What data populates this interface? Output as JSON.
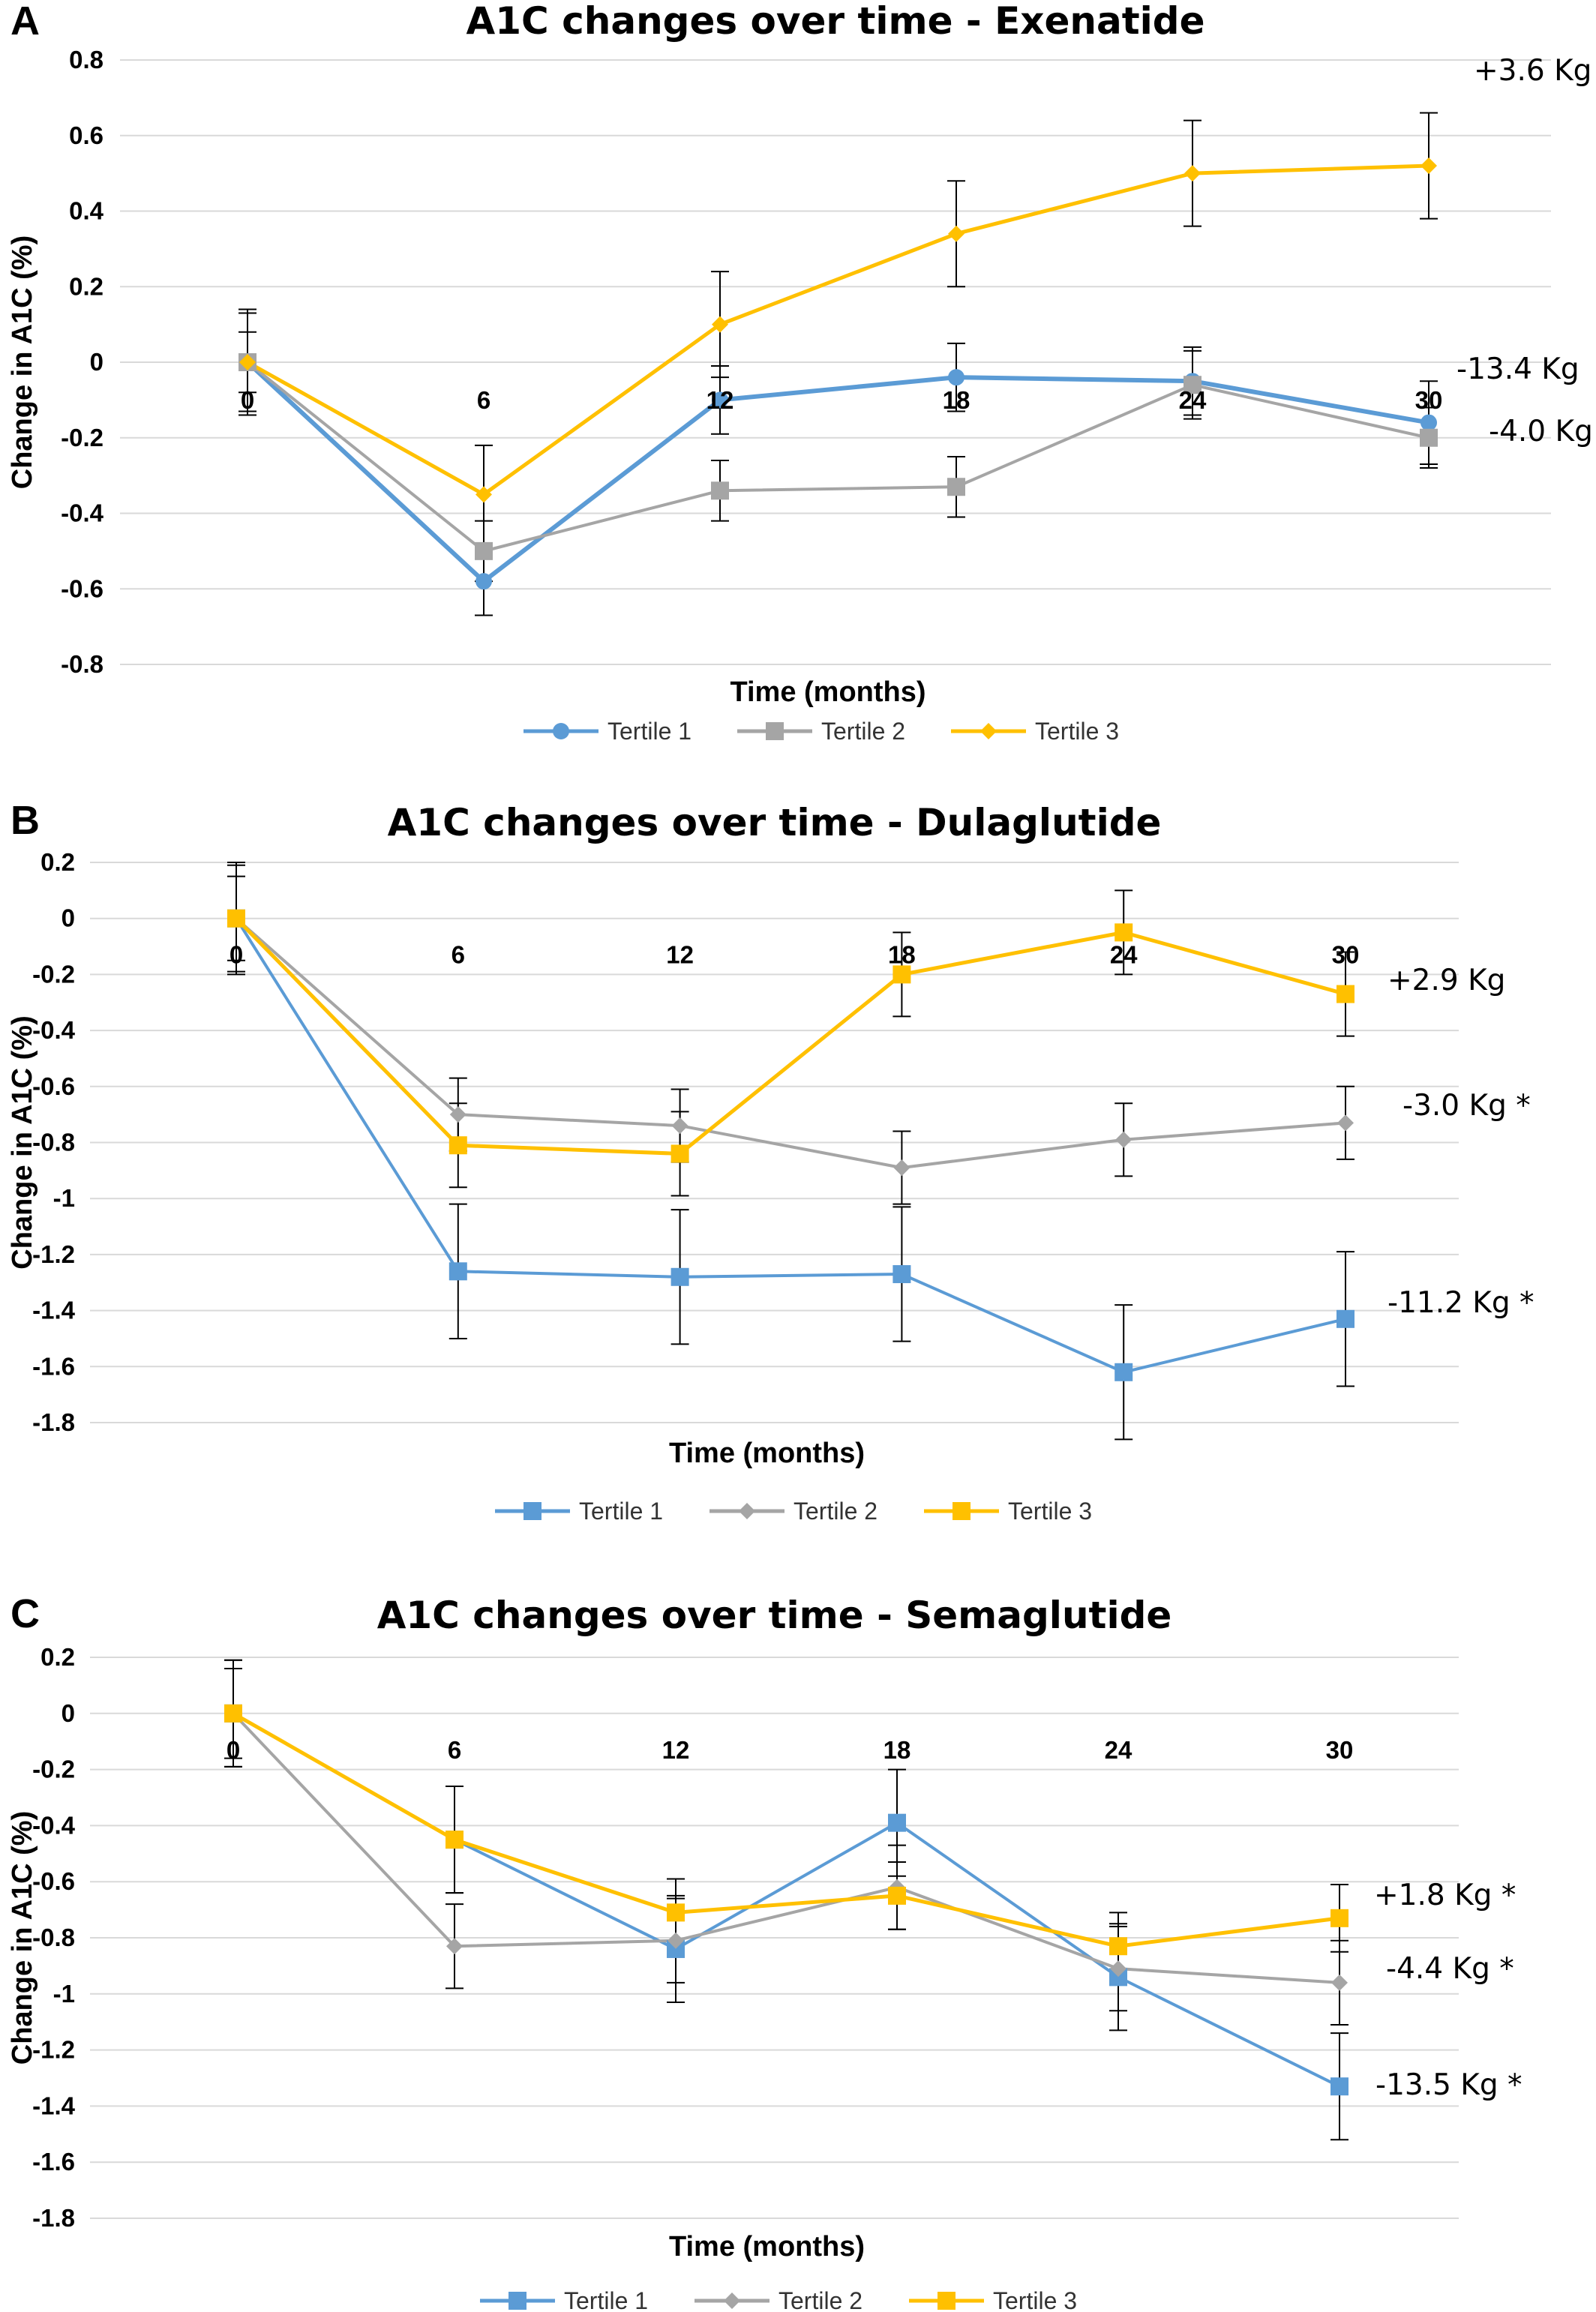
{
  "colors": {
    "tertile1": "#5B9BD5",
    "tertile2": "#A5A5A5",
    "tertile3": "#FFC000",
    "grid": "#D9D9D9"
  },
  "chart_data": [
    {
      "panel": "A",
      "type": "line",
      "title": "A1C changes over time - Exenatide",
      "xlabel": "Time (months)",
      "ylabel": "Change in A1C (%)",
      "x": [
        0,
        6,
        12,
        18,
        24,
        30
      ],
      "ylim": [
        -0.8,
        0.8
      ],
      "yticks": [
        "0.8",
        "0.6",
        "0.4",
        "0.2",
        "0",
        "-0.2",
        "-0.4",
        "-0.6",
        "-0.8"
      ],
      "grid": true,
      "legend": "bottom",
      "series": [
        {
          "name": "Tertile 1",
          "values": [
            0,
            -0.58,
            -0.1,
            -0.04,
            -0.05,
            -0.16
          ],
          "error": [
            0.13,
            0.09,
            0.09,
            0.09,
            0.09,
            0.11
          ],
          "marker": "circle",
          "width": 6
        },
        {
          "name": "Tertile 2",
          "values": [
            0,
            -0.5,
            -0.34,
            -0.33,
            -0.06,
            -0.2
          ],
          "error": [
            0.08,
            0.08,
            0.08,
            0.08,
            0.09,
            0.08
          ],
          "marker": "square",
          "width": 4
        },
        {
          "name": "Tertile 3",
          "values": [
            0,
            -0.35,
            0.1,
            0.34,
            0.5,
            0.52
          ],
          "error": [
            0.14,
            0.13,
            0.14,
            0.14,
            0.14,
            0.14
          ],
          "marker": "diamond",
          "width": 5
        }
      ],
      "annotations": [
        {
          "text": "+3.6 Kg",
          "series": "Tertile 3"
        },
        {
          "text": "-13.4 Kg",
          "series": "Tertile 1"
        },
        {
          "text": "-4.0 Kg",
          "series": "Tertile 2"
        }
      ]
    },
    {
      "panel": "B",
      "type": "line",
      "title": "A1C changes over time - Dulaglutide",
      "xlabel": "Time (months)",
      "ylabel": "Change in A1C (%)",
      "x": [
        0,
        6,
        12,
        18,
        24,
        30
      ],
      "ylim": [
        -1.8,
        0.2
      ],
      "yticks": [
        "0.2",
        "0",
        "-0.2",
        "-0.4",
        "-0.6",
        "-0.8",
        "-1",
        "-1.2",
        "-1.4",
        "-1.6",
        "-1.8"
      ],
      "grid": true,
      "legend": "bottom",
      "series": [
        {
          "name": "Tertile 1",
          "values": [
            0,
            -1.26,
            -1.28,
            -1.27,
            -1.62,
            -1.43
          ],
          "error": [
            0.2,
            0.24,
            0.24,
            0.24,
            0.24,
            0.24
          ],
          "marker": "square",
          "width": 4
        },
        {
          "name": "Tertile 2",
          "values": [
            0,
            -0.7,
            -0.74,
            -0.89,
            -0.79,
            -0.73
          ],
          "error": [
            0.19,
            0.13,
            0.13,
            0.13,
            0.13,
            0.13
          ],
          "marker": "diamond",
          "width": 4
        },
        {
          "name": "Tertile 3",
          "values": [
            0,
            -0.81,
            -0.84,
            -0.2,
            -0.05,
            -0.27
          ],
          "error": [
            0.15,
            0.15,
            0.15,
            0.15,
            0.15,
            0.15
          ],
          "marker": "square",
          "width": 5
        }
      ],
      "annotations": [
        {
          "text": "+2.9 Kg",
          "series": "Tertile 3"
        },
        {
          "text": "-3.0 Kg *",
          "series": "Tertile 2"
        },
        {
          "text": "-11.2 Kg *",
          "series": "Tertile 1"
        }
      ]
    },
    {
      "panel": "C",
      "type": "line",
      "title": "A1C changes over time - Semaglutide",
      "xlabel": "Time (months)",
      "ylabel": "Change in A1C (%)",
      "x": [
        0,
        6,
        12,
        18,
        24,
        30
      ],
      "ylim": [
        -1.8,
        0.2
      ],
      "yticks": [
        "0.2",
        "0",
        "-0.2",
        "-0.4",
        "-0.6",
        "-0.8",
        "-1",
        "-1.2",
        "-1.4",
        "-1.6",
        "-1.8"
      ],
      "grid": true,
      "legend": "bottom",
      "series": [
        {
          "name": "Tertile 1",
          "values": [
            0,
            -0.45,
            -0.84,
            -0.39,
            -0.94,
            -1.33
          ],
          "error": [
            0.19,
            0.19,
            0.19,
            0.19,
            0.19,
            0.19
          ],
          "marker": "square",
          "width": 4
        },
        {
          "name": "Tertile 2",
          "values": [
            0,
            -0.83,
            -0.81,
            -0.62,
            -0.91,
            -0.96
          ],
          "error": [
            0.16,
            0.15,
            0.15,
            0.15,
            0.15,
            0.15
          ],
          "marker": "diamond",
          "width": 4
        },
        {
          "name": "Tertile 3",
          "values": [
            0,
            -0.45,
            -0.71,
            -0.65,
            -0.83,
            -0.73
          ],
          "error": [
            0.19,
            0.19,
            0.12,
            0.12,
            0.12,
            0.12
          ],
          "marker": "square",
          "width": 5
        }
      ],
      "annotations": [
        {
          "text": "+1.8 Kg *",
          "series": "Tertile 3"
        },
        {
          "text": "-4.4 Kg *",
          "series": "Tertile 2"
        },
        {
          "text": "-13.5 Kg *",
          "series": "Tertile 1"
        }
      ]
    }
  ]
}
